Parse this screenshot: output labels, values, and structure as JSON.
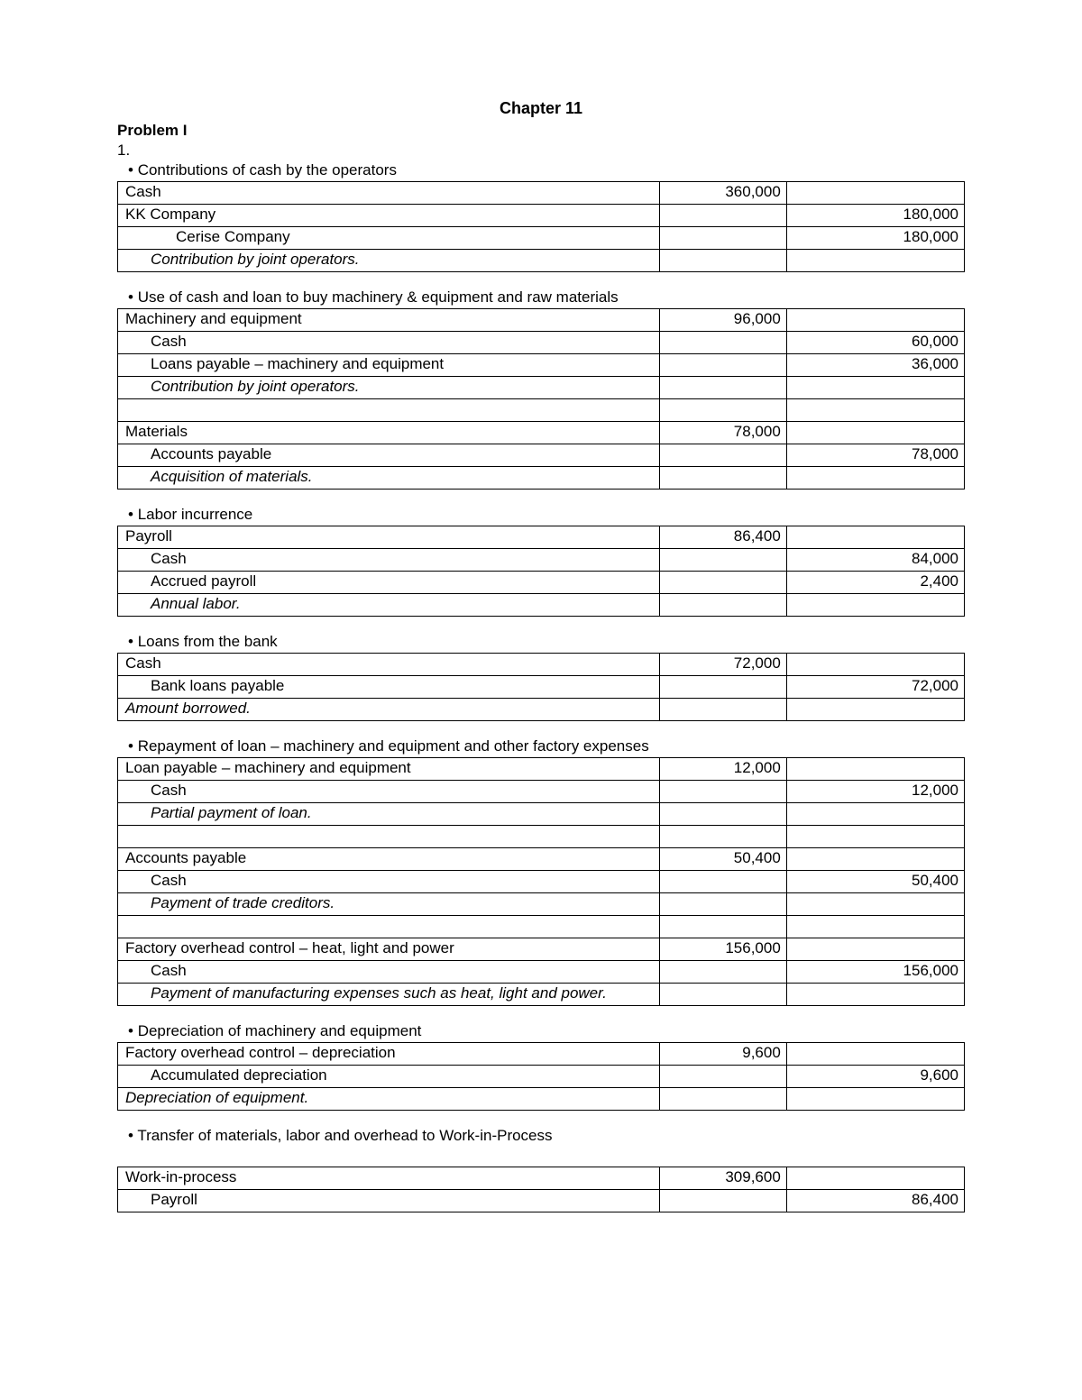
{
  "chapter": "Chapter 11",
  "problem": "Problem I",
  "num": "1.",
  "sections": [
    {
      "bullet": "Contributions of cash by the operators",
      "rows": [
        {
          "label": "Cash",
          "indent": 0,
          "debit": "360,000",
          "credit": ""
        },
        {
          "label": "KK Company",
          "indent": 0,
          "debit": "",
          "credit": "180,000"
        },
        {
          "label": "Cerise Company",
          "indent": 2,
          "debit": "",
          "credit": "180,000"
        },
        {
          "label": "Contribution by joint operators.",
          "indent": 1,
          "italic": true,
          "debit": "",
          "credit": ""
        }
      ]
    },
    {
      "bullet": "Use of cash and loan to buy machinery & equipment and raw materials",
      "rows": [
        {
          "label": "Machinery and equipment",
          "indent": 0,
          "debit": "96,000",
          "credit": ""
        },
        {
          "label": "Cash",
          "indent": 1,
          "debit": "",
          "credit": "60,000"
        },
        {
          "label": "Loans payable – machinery and equipment",
          "indent": 1,
          "debit": "",
          "credit": "36,000"
        },
        {
          "label": "Contribution by joint operators.",
          "indent": 1,
          "italic": true,
          "debit": "",
          "credit": ""
        },
        {
          "label": "",
          "indent": 0,
          "debit": "",
          "credit": ""
        },
        {
          "label": "Materials",
          "indent": 0,
          "debit": "78,000",
          "credit": ""
        },
        {
          "label": "Accounts payable",
          "indent": 1,
          "debit": "",
          "credit": "78,000"
        },
        {
          "label": "Acquisition of materials.",
          "indent": 1,
          "italic": true,
          "debit": "",
          "credit": ""
        }
      ]
    },
    {
      "bullet": "Labor incurrence",
      "rows": [
        {
          "label": "Payroll",
          "indent": 0,
          "debit": "86,400",
          "credit": ""
        },
        {
          "label": "Cash",
          "indent": 1,
          "debit": "",
          "credit": "84,000"
        },
        {
          "label": "Accrued payroll",
          "indent": 1,
          "debit": "",
          "credit": "2,400"
        },
        {
          "label": "Annual labor.",
          "indent": 1,
          "italic": true,
          "debit": "",
          "credit": ""
        }
      ]
    },
    {
      "bullet": "Loans from the bank",
      "rows": [
        {
          "label": "Cash",
          "indent": 0,
          "debit": "72,000",
          "credit": ""
        },
        {
          "label": "Bank loans payable",
          "indent": 1,
          "debit": "",
          "credit": "72,000"
        },
        {
          "label": "Amount borrowed.",
          "indent": 0,
          "italic": true,
          "debit": "",
          "credit": ""
        }
      ]
    },
    {
      "bullet": "Repayment of loan – machinery and equipment and other factory expenses",
      "rows": [
        {
          "label": "Loan payable – machinery and equipment",
          "indent": 0,
          "debit": "12,000",
          "credit": ""
        },
        {
          "label": "Cash",
          "indent": 1,
          "debit": "",
          "credit": "12,000"
        },
        {
          "label": "Partial payment of loan.",
          "indent": 1,
          "italic": true,
          "debit": "",
          "credit": ""
        },
        {
          "label": "",
          "indent": 0,
          "debit": "",
          "credit": ""
        },
        {
          "label": "Accounts payable",
          "indent": 0,
          "debit": "50,400",
          "credit": ""
        },
        {
          "label": "Cash",
          "indent": 1,
          "debit": "",
          "credit": "50,400"
        },
        {
          "label": "Payment of trade creditors.",
          "indent": 1,
          "italic": true,
          "debit": "",
          "credit": ""
        },
        {
          "label": "",
          "indent": 0,
          "debit": "",
          "credit": ""
        },
        {
          "label": "Factory overhead control – heat, light and power",
          "indent": 0,
          "debit": "156,000",
          "credit": ""
        },
        {
          "label": "Cash",
          "indent": 1,
          "debit": "",
          "credit": "156,000"
        },
        {
          "label": "Payment of manufacturing expenses such as heat, light and power.",
          "indent": 1,
          "italic": true,
          "debit": "",
          "credit": ""
        }
      ]
    },
    {
      "bullet": "Depreciation of machinery and equipment",
      "rows": [
        {
          "label": "Factory overhead control – depreciation",
          "indent": 0,
          "debit": "9,600",
          "credit": ""
        },
        {
          "label": "Accumulated depreciation",
          "indent": 1,
          "debit": "",
          "credit": "9,600"
        },
        {
          "label": "Depreciation of equipment.",
          "indent": 0,
          "italic": true,
          "debit": "",
          "credit": ""
        }
      ]
    },
    {
      "bullet": "Transfer of materials, labor and overhead to Work-in-Process",
      "gap": true,
      "rows": [
        {
          "label": "Work-in-process",
          "indent": 0,
          "debit": "309,600",
          "credit": ""
        },
        {
          "label": "Payroll",
          "indent": 1,
          "debit": "",
          "credit": "86,400"
        }
      ]
    }
  ]
}
